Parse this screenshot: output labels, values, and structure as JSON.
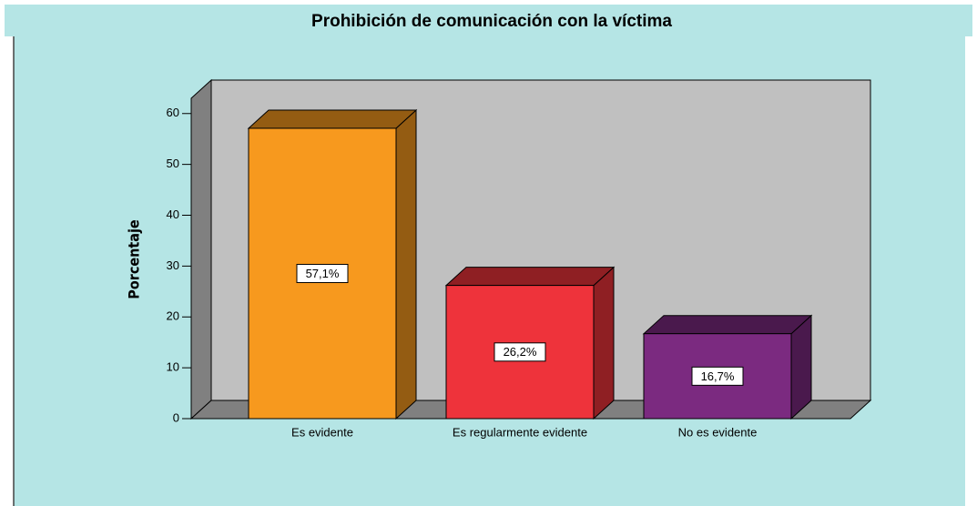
{
  "chart_data": {
    "type": "bar3d",
    "title": "Prohibición de comunicación con la víctima",
    "ylabel": "Porcentaje",
    "categories": [
      "Es evidente",
      "Es regularmente evidente",
      "No es evidente"
    ],
    "values": [
      57.1,
      26.2,
      16.7
    ],
    "value_labels": [
      "57,1%",
      "26,2%",
      "16,7%"
    ],
    "colors": [
      "#f7991e",
      "#ee333b",
      "#7b2a80"
    ],
    "ylim": [
      0,
      63
    ],
    "yticks": [
      0,
      10,
      20,
      30,
      40,
      50,
      60
    ]
  }
}
